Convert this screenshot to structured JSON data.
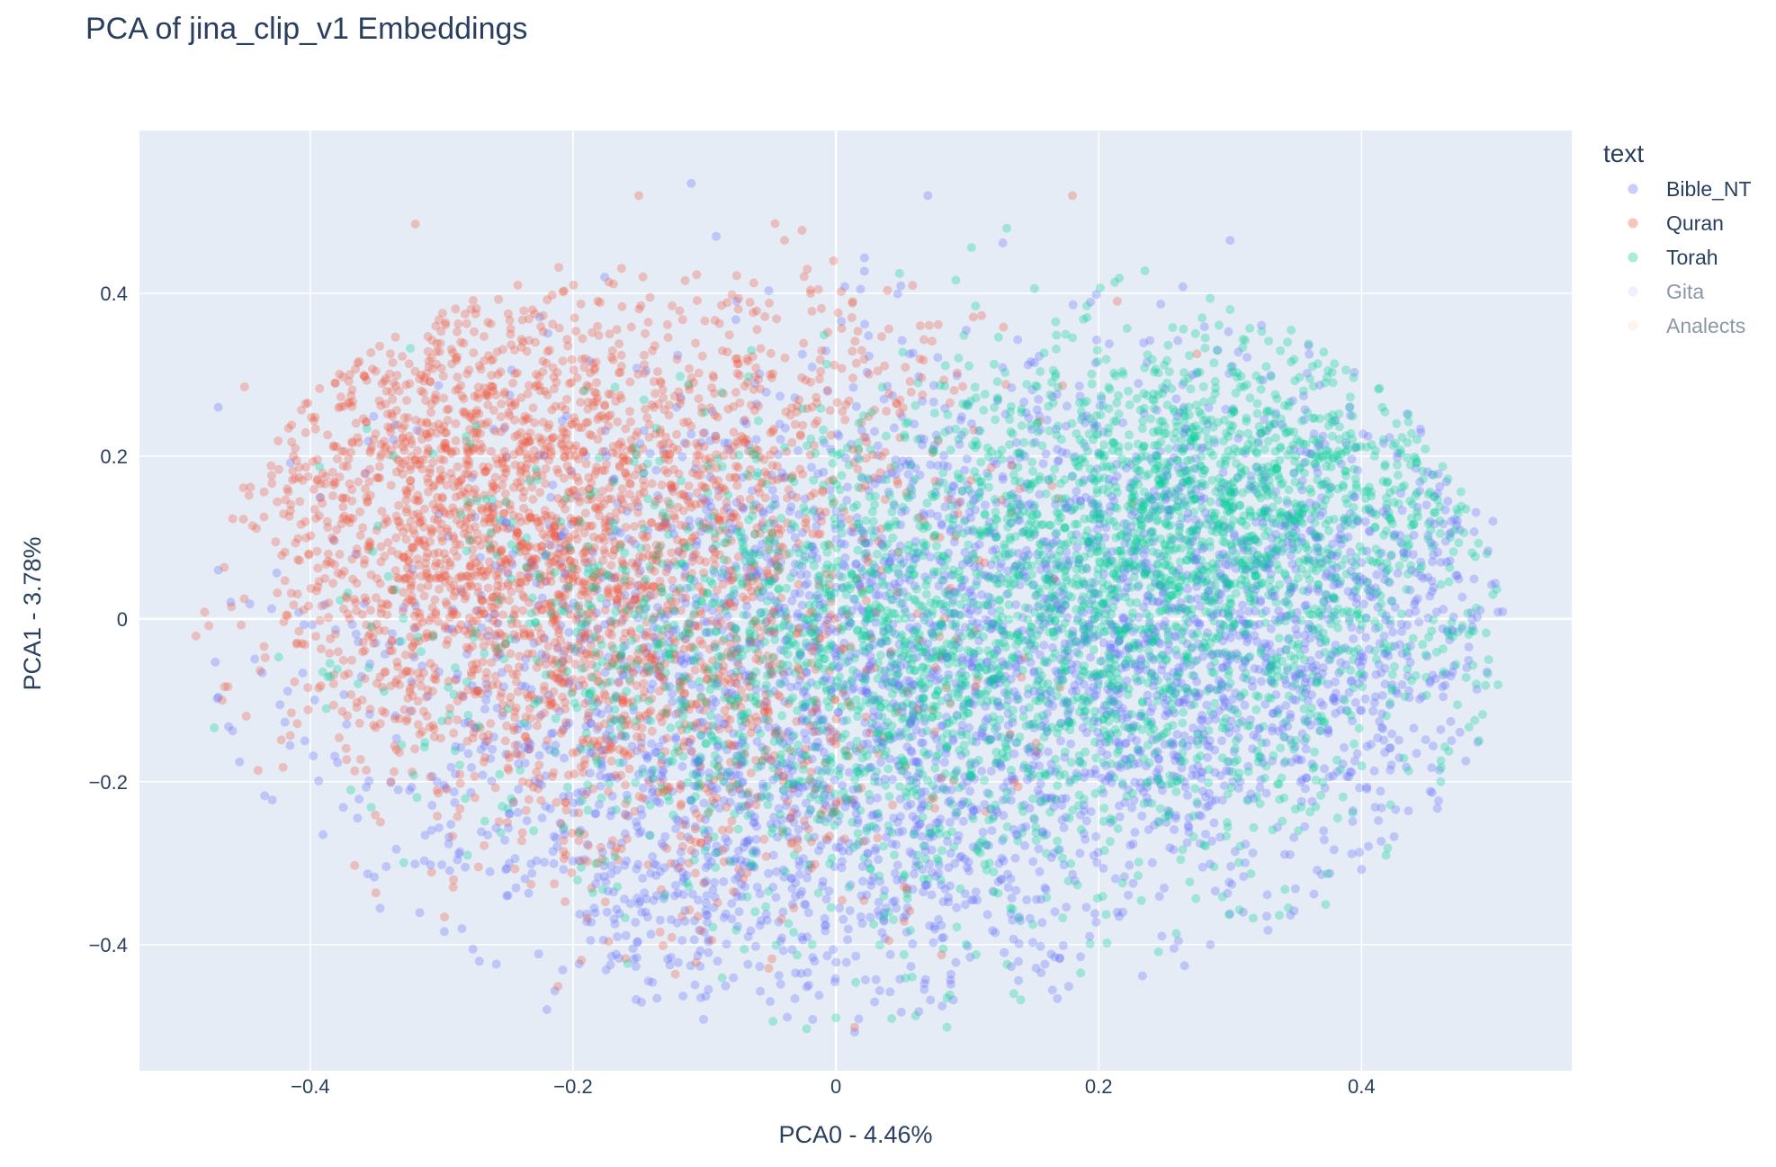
{
  "chart_data": {
    "type": "scatter",
    "title": "PCA of jina_clip_v1 Embeddings",
    "xlabel": "PCA0 - 4.46%",
    "ylabel": "PCA1 - 3.78%",
    "xlim": [
      -0.53,
      0.56
    ],
    "ylim": [
      -0.555,
      0.6
    ],
    "xticks": [
      -0.4,
      -0.2,
      0,
      0.2,
      0.4
    ],
    "xtick_labels": [
      "−0.4",
      "−0.2",
      "0",
      "0.2",
      "0.4"
    ],
    "yticks": [
      -0.4,
      -0.2,
      0,
      0.2,
      0.4
    ],
    "ytick_labels": [
      "−0.4",
      "−0.2",
      "0",
      "0.2",
      "0.4"
    ],
    "grid": true,
    "legend_position": "right",
    "legend_title": "text",
    "series": [
      {
        "name": "Bible_NT",
        "color": "#636efa",
        "visible": true,
        "sample_points": [
          [
            -0.47,
            0.26
          ],
          [
            -0.47,
            0.06
          ],
          [
            0.3,
            0.465
          ],
          [
            0.5,
            0.12
          ],
          [
            0.48,
            -0.06
          ],
          [
            -0.22,
            -0.48
          ],
          [
            -0.05,
            -0.47
          ],
          [
            0.07,
            0.52
          ],
          [
            -0.11,
            0.535
          ],
          [
            0.35,
            -0.1
          ],
          [
            0.1,
            -0.2
          ],
          [
            -0.15,
            -0.35
          ]
        ]
      },
      {
        "name": "Quran",
        "color": "#ef553b",
        "visible": true,
        "sample_points": [
          [
            -0.45,
            0.285
          ],
          [
            -0.46,
            0.015
          ],
          [
            0.18,
            0.52
          ],
          [
            -0.15,
            0.52
          ],
          [
            -0.32,
            0.485
          ],
          [
            -0.2,
            0.05
          ],
          [
            -0.18,
            -0.1
          ],
          [
            -0.3,
            0.1
          ],
          [
            -0.05,
            0.3
          ],
          [
            -0.25,
            -0.25
          ]
        ]
      },
      {
        "name": "Torah",
        "color": "#00cc96",
        "visible": true,
        "sample_points": [
          [
            0.5,
            0.03
          ],
          [
            0.41,
            0.2
          ],
          [
            0.3,
            0.38
          ],
          [
            0.13,
            0.48
          ],
          [
            0.0,
            -0.49
          ],
          [
            0.2,
            0.1
          ],
          [
            0.25,
            0.15
          ],
          [
            0.1,
            -0.1
          ],
          [
            -0.1,
            0.05
          ],
          [
            0.35,
            0.2
          ]
        ]
      },
      {
        "name": "Gita",
        "color": "#ab63fa",
        "visible": false,
        "sample_points": []
      },
      {
        "name": "Analects",
        "color": "#ffa15a",
        "visible": false,
        "sample_points": []
      }
    ],
    "marker_opacity": 0.3
  },
  "colors": {
    "plot_background": "#e5ecf6",
    "grid": "#ffffff",
    "text": "#2a3f5f",
    "legend_hidden_text": "#8c97a8"
  }
}
